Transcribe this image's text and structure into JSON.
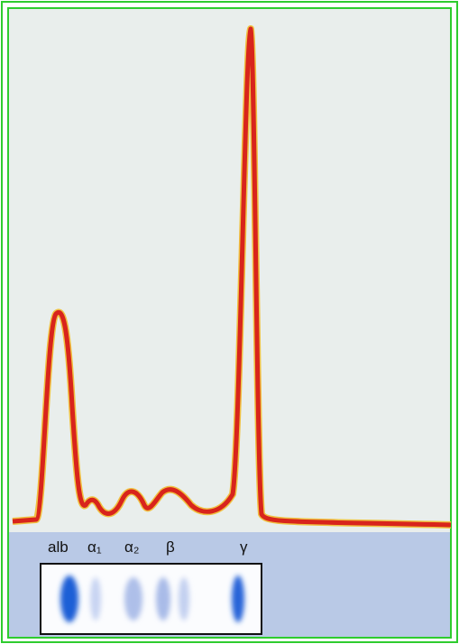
{
  "bands": [
    {
      "label": "alb"
    },
    {
      "label": "α₁"
    },
    {
      "label": "α₂"
    },
    {
      "label": "β"
    },
    {
      "label": "γ"
    }
  ]
}
